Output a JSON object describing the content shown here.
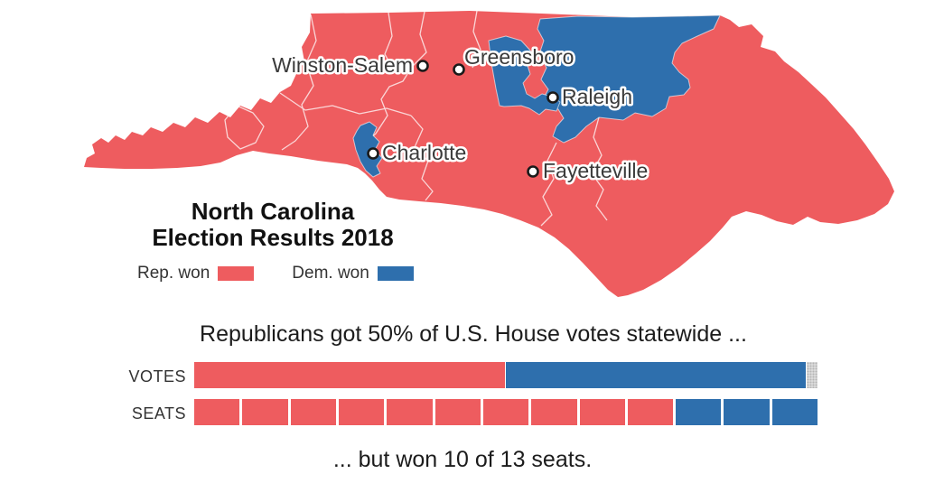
{
  "title": {
    "line1": "North Carolina",
    "line2": "Election Results 2018"
  },
  "legend": {
    "rep_label": "Rep. won",
    "dem_label": "Dem. won"
  },
  "colors": {
    "rep": "#ee5c5f",
    "dem": "#2e6fad",
    "other": "#d9d9d9"
  },
  "map": {
    "region": "North Carolina",
    "cities": [
      {
        "name": "Winston-Salem"
      },
      {
        "name": "Greensboro"
      },
      {
        "name": "Raleigh"
      },
      {
        "name": "Charlotte"
      },
      {
        "name": "Fayetteville"
      }
    ]
  },
  "chart_data": [
    {
      "type": "bar",
      "name": "votes-share",
      "orientation": "horizontal-stacked",
      "row_label": "VOTES",
      "title": "Republicans got 50% of U.S. House votes statewide ...",
      "unit": "percent of statewide U.S. House vote",
      "series": [
        {
          "name": "Republican",
          "value": 50.0,
          "color_key": "rep"
        },
        {
          "name": "Democratic",
          "value": 48.3,
          "color_key": "dem"
        },
        {
          "name": "Other",
          "value": 1.7,
          "color_key": "other"
        }
      ]
    },
    {
      "type": "bar",
      "name": "seats-won",
      "orientation": "horizontal-segments",
      "row_label": "SEATS",
      "title": "... but won 10 of 13 seats.",
      "total_seats": 13,
      "rep_seats": 10,
      "dem_seats": 3
    }
  ]
}
